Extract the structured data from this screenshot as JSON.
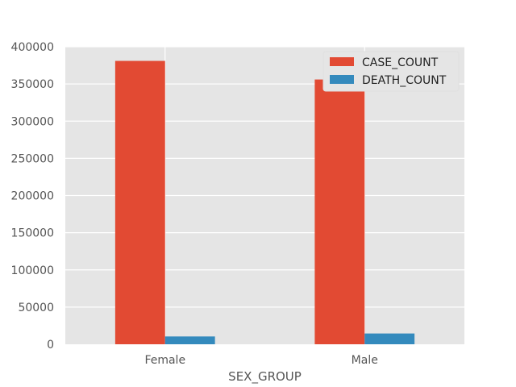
{
  "chart_data": {
    "type": "bar",
    "title": "",
    "xlabel": "SEX_GROUP",
    "ylabel": "",
    "categories": [
      "Female",
      "Male"
    ],
    "series": [
      {
        "name": "CASE_COUNT",
        "color": "#E24A33",
        "values": [
          381000,
          356000
        ]
      },
      {
        "name": "DEATH_COUNT",
        "color": "#348ABD",
        "values": [
          10500,
          14500
        ]
      }
    ],
    "ylim": [
      0,
      400000
    ],
    "yticks": [
      0,
      50000,
      100000,
      150000,
      200000,
      250000,
      300000,
      350000,
      400000
    ],
    "grid": true,
    "legend_position": "top-right",
    "plot_background": "#E5E5E5",
    "grid_color": "#FFFFFF"
  }
}
